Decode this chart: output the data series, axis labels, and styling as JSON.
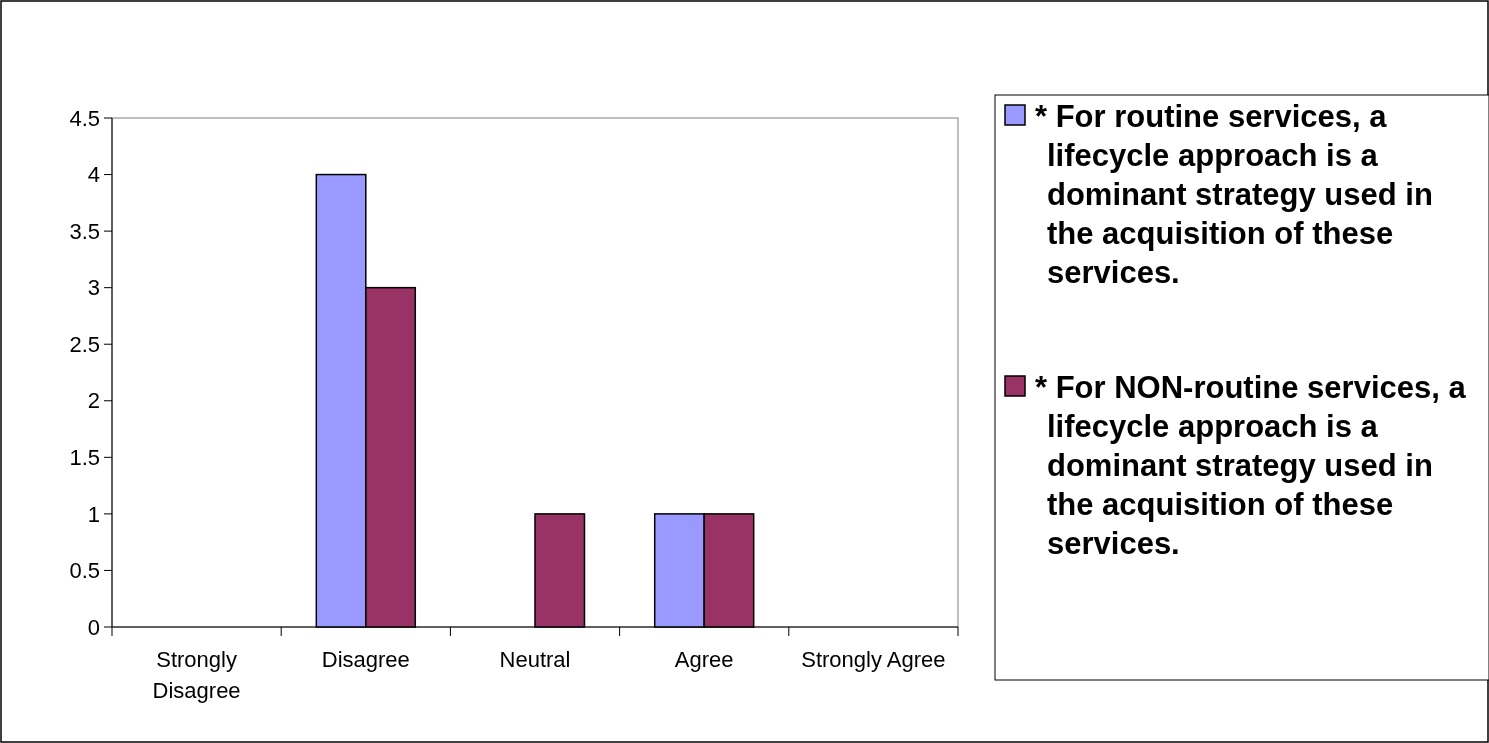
{
  "chart_data": {
    "type": "bar",
    "categories": [
      "Strongly Disagree",
      "Disagree",
      "Neutral",
      "Agree",
      "Strongly Agree"
    ],
    "series": [
      {
        "name": "* For routine services, a lifecycle approach is a dominant strategy used in the acquisition of these services.",
        "color": "#9999ff",
        "values": [
          0,
          4,
          0,
          1,
          0
        ]
      },
      {
        "name": "* For NON-routine services, a lifecycle approach is a dominant strategy used in the acquisition of these services.",
        "color": "#993366",
        "values": [
          0,
          3,
          1,
          1,
          0
        ]
      }
    ],
    "ylim": [
      0,
      4.5
    ],
    "yticks": [
      0,
      0.5,
      1,
      1.5,
      2,
      2.5,
      3,
      3.5,
      4,
      4.5
    ],
    "legend": "right"
  }
}
